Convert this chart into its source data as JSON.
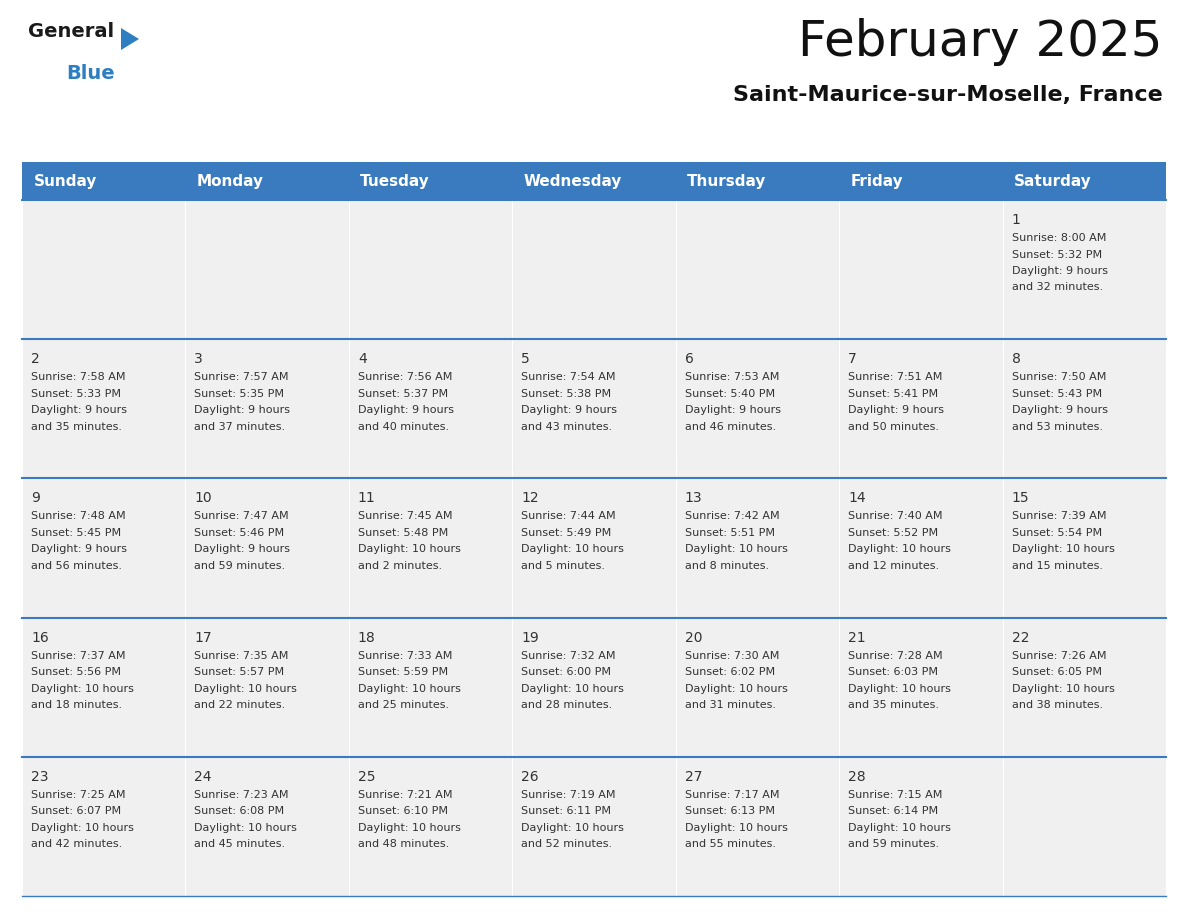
{
  "title": "February 2025",
  "subtitle": "Saint-Maurice-sur-Moselle, France",
  "header_color": "#3a7abf",
  "header_text_color": "#ffffff",
  "cell_bg_color": "#f0f0f0",
  "cell_border_color": "#3a7abf",
  "cell_text_color": "#333333",
  "day_headers": [
    "Sunday",
    "Monday",
    "Tuesday",
    "Wednesday",
    "Thursday",
    "Friday",
    "Saturday"
  ],
  "days": [
    {
      "day": 1,
      "col": 6,
      "row": 0,
      "sunrise": "8:00 AM",
      "sunset": "5:32 PM",
      "daylight_h": "9 hours",
      "daylight_m": "32 minutes."
    },
    {
      "day": 2,
      "col": 0,
      "row": 1,
      "sunrise": "7:58 AM",
      "sunset": "5:33 PM",
      "daylight_h": "9 hours",
      "daylight_m": "35 minutes."
    },
    {
      "day": 3,
      "col": 1,
      "row": 1,
      "sunrise": "7:57 AM",
      "sunset": "5:35 PM",
      "daylight_h": "9 hours",
      "daylight_m": "37 minutes."
    },
    {
      "day": 4,
      "col": 2,
      "row": 1,
      "sunrise": "7:56 AM",
      "sunset": "5:37 PM",
      "daylight_h": "9 hours",
      "daylight_m": "40 minutes."
    },
    {
      "day": 5,
      "col": 3,
      "row": 1,
      "sunrise": "7:54 AM",
      "sunset": "5:38 PM",
      "daylight_h": "9 hours",
      "daylight_m": "43 minutes."
    },
    {
      "day": 6,
      "col": 4,
      "row": 1,
      "sunrise": "7:53 AM",
      "sunset": "5:40 PM",
      "daylight_h": "9 hours",
      "daylight_m": "46 minutes."
    },
    {
      "day": 7,
      "col": 5,
      "row": 1,
      "sunrise": "7:51 AM",
      "sunset": "5:41 PM",
      "daylight_h": "9 hours",
      "daylight_m": "50 minutes."
    },
    {
      "day": 8,
      "col": 6,
      "row": 1,
      "sunrise": "7:50 AM",
      "sunset": "5:43 PM",
      "daylight_h": "9 hours",
      "daylight_m": "53 minutes."
    },
    {
      "day": 9,
      "col": 0,
      "row": 2,
      "sunrise": "7:48 AM",
      "sunset": "5:45 PM",
      "daylight_h": "9 hours",
      "daylight_m": "56 minutes."
    },
    {
      "day": 10,
      "col": 1,
      "row": 2,
      "sunrise": "7:47 AM",
      "sunset": "5:46 PM",
      "daylight_h": "9 hours",
      "daylight_m": "59 minutes."
    },
    {
      "day": 11,
      "col": 2,
      "row": 2,
      "sunrise": "7:45 AM",
      "sunset": "5:48 PM",
      "daylight_h": "10 hours",
      "daylight_m": "2 minutes."
    },
    {
      "day": 12,
      "col": 3,
      "row": 2,
      "sunrise": "7:44 AM",
      "sunset": "5:49 PM",
      "daylight_h": "10 hours",
      "daylight_m": "5 minutes."
    },
    {
      "day": 13,
      "col": 4,
      "row": 2,
      "sunrise": "7:42 AM",
      "sunset": "5:51 PM",
      "daylight_h": "10 hours",
      "daylight_m": "8 minutes."
    },
    {
      "day": 14,
      "col": 5,
      "row": 2,
      "sunrise": "7:40 AM",
      "sunset": "5:52 PM",
      "daylight_h": "10 hours",
      "daylight_m": "12 minutes."
    },
    {
      "day": 15,
      "col": 6,
      "row": 2,
      "sunrise": "7:39 AM",
      "sunset": "5:54 PM",
      "daylight_h": "10 hours",
      "daylight_m": "15 minutes."
    },
    {
      "day": 16,
      "col": 0,
      "row": 3,
      "sunrise": "7:37 AM",
      "sunset": "5:56 PM",
      "daylight_h": "10 hours",
      "daylight_m": "18 minutes."
    },
    {
      "day": 17,
      "col": 1,
      "row": 3,
      "sunrise": "7:35 AM",
      "sunset": "5:57 PM",
      "daylight_h": "10 hours",
      "daylight_m": "22 minutes."
    },
    {
      "day": 18,
      "col": 2,
      "row": 3,
      "sunrise": "7:33 AM",
      "sunset": "5:59 PM",
      "daylight_h": "10 hours",
      "daylight_m": "25 minutes."
    },
    {
      "day": 19,
      "col": 3,
      "row": 3,
      "sunrise": "7:32 AM",
      "sunset": "6:00 PM",
      "daylight_h": "10 hours",
      "daylight_m": "28 minutes."
    },
    {
      "day": 20,
      "col": 4,
      "row": 3,
      "sunrise": "7:30 AM",
      "sunset": "6:02 PM",
      "daylight_h": "10 hours",
      "daylight_m": "31 minutes."
    },
    {
      "day": 21,
      "col": 5,
      "row": 3,
      "sunrise": "7:28 AM",
      "sunset": "6:03 PM",
      "daylight_h": "10 hours",
      "daylight_m": "35 minutes."
    },
    {
      "day": 22,
      "col": 6,
      "row": 3,
      "sunrise": "7:26 AM",
      "sunset": "6:05 PM",
      "daylight_h": "10 hours",
      "daylight_m": "38 minutes."
    },
    {
      "day": 23,
      "col": 0,
      "row": 4,
      "sunrise": "7:25 AM",
      "sunset": "6:07 PM",
      "daylight_h": "10 hours",
      "daylight_m": "42 minutes."
    },
    {
      "day": 24,
      "col": 1,
      "row": 4,
      "sunrise": "7:23 AM",
      "sunset": "6:08 PM",
      "daylight_h": "10 hours",
      "daylight_m": "45 minutes."
    },
    {
      "day": 25,
      "col": 2,
      "row": 4,
      "sunrise": "7:21 AM",
      "sunset": "6:10 PM",
      "daylight_h": "10 hours",
      "daylight_m": "48 minutes."
    },
    {
      "day": 26,
      "col": 3,
      "row": 4,
      "sunrise": "7:19 AM",
      "sunset": "6:11 PM",
      "daylight_h": "10 hours",
      "daylight_m": "52 minutes."
    },
    {
      "day": 27,
      "col": 4,
      "row": 4,
      "sunrise": "7:17 AM",
      "sunset": "6:13 PM",
      "daylight_h": "10 hours",
      "daylight_m": "55 minutes."
    },
    {
      "day": 28,
      "col": 5,
      "row": 4,
      "sunrise": "7:15 AM",
      "sunset": "6:14 PM",
      "daylight_h": "10 hours",
      "daylight_m": "59 minutes."
    }
  ],
  "logo_text_general": "General",
  "logo_text_blue": "Blue",
  "logo_color_general": "#1a1a1a",
  "logo_color_blue": "#2e7fc1",
  "logo_triangle_color": "#2e7fc1",
  "title_fontsize": 36,
  "subtitle_fontsize": 16,
  "header_fontsize": 11,
  "day_num_fontsize": 10,
  "cell_text_fontsize": 8
}
